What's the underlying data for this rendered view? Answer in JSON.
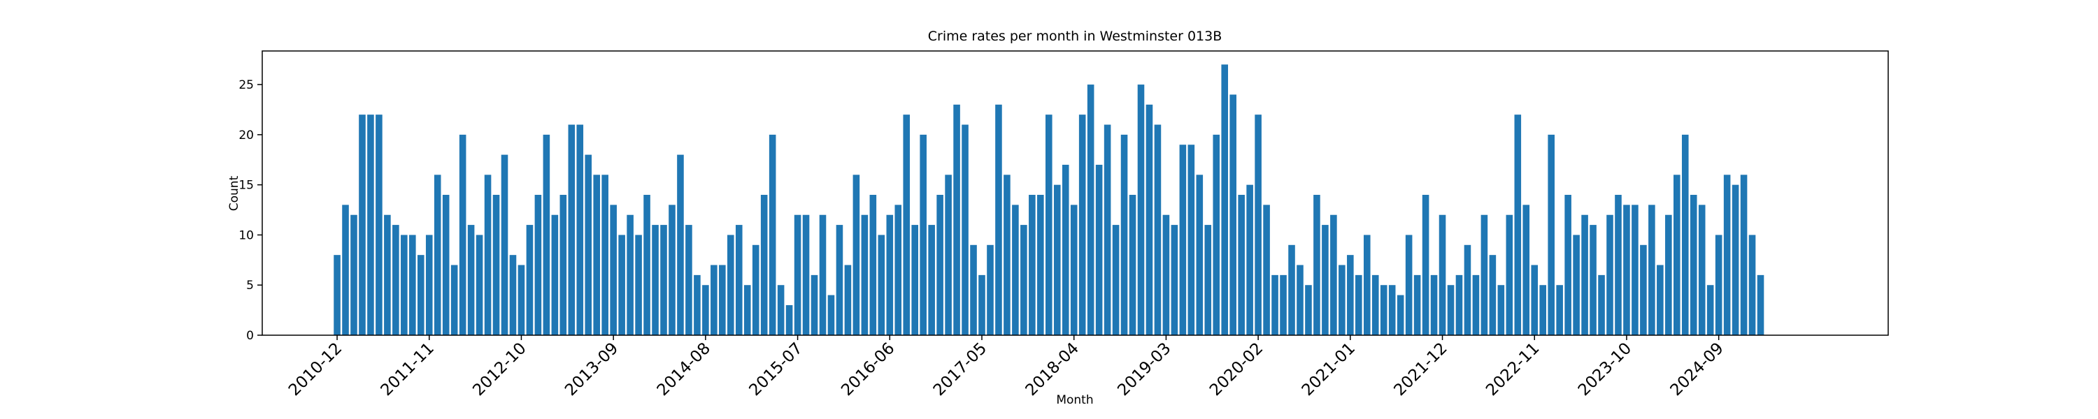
{
  "chart_data": {
    "type": "bar",
    "title": "Crime rates per month in Westminster 013B",
    "xlabel": "Month",
    "ylabel": "Count",
    "color": "#1f77b4",
    "categories": [
      "2010-12",
      null,
      null,
      null,
      null,
      null,
      null,
      null,
      null,
      null,
      null,
      "2011-11",
      null,
      null,
      null,
      null,
      null,
      null,
      null,
      null,
      null,
      null,
      "2012-10",
      null,
      null,
      null,
      null,
      null,
      null,
      null,
      null,
      null,
      null,
      "2013-09",
      null,
      null,
      null,
      null,
      null,
      null,
      null,
      null,
      null,
      null,
      "2014-08",
      null,
      null,
      null,
      null,
      null,
      null,
      null,
      null,
      null,
      null,
      "2015-07",
      null,
      null,
      null,
      null,
      null,
      null,
      null,
      null,
      null,
      null,
      "2016-06",
      null,
      null,
      null,
      null,
      null,
      null,
      null,
      null,
      null,
      null,
      "2017-05",
      null,
      null,
      null,
      null,
      null,
      null,
      null,
      null,
      null,
      null,
      "2018-04",
      null,
      null,
      null,
      null,
      null,
      null,
      null,
      null,
      null,
      null,
      "2019-03",
      null,
      null,
      null,
      null,
      null,
      null,
      null,
      null,
      null,
      null,
      "2020-02",
      null,
      null,
      null,
      null,
      null,
      null,
      null,
      null,
      null,
      null,
      "2021-01",
      null,
      null,
      null,
      null,
      null,
      null,
      null,
      null,
      null,
      null,
      "2021-12",
      null,
      null,
      null,
      null,
      null,
      null,
      null,
      null,
      null,
      null,
      "2022-11",
      null,
      null,
      null,
      null,
      null,
      null,
      null,
      null,
      null,
      null,
      "2023-10",
      null,
      null,
      null,
      null,
      null,
      null,
      null,
      null,
      null,
      null,
      "2024-09",
      null,
      null,
      null,
      null,
      null
    ],
    "values": [
      8,
      13,
      12,
      22,
      22,
      22,
      12,
      11,
      10,
      10,
      8,
      10,
      16,
      14,
      7,
      20,
      11,
      10,
      16,
      14,
      18,
      8,
      7,
      11,
      14,
      20,
      12,
      14,
      21,
      21,
      18,
      16,
      16,
      13,
      10,
      12,
      10,
      14,
      11,
      11,
      13,
      18,
      11,
      6,
      5,
      7,
      7,
      10,
      11,
      5,
      9,
      14,
      20,
      5,
      3,
      12,
      12,
      6,
      12,
      4,
      11,
      7,
      16,
      12,
      14,
      10,
      12,
      13,
      22,
      11,
      20,
      11,
      14,
      16,
      23,
      21,
      9,
      6,
      9,
      23,
      16,
      13,
      11,
      14,
      14,
      22,
      15,
      17,
      13,
      22,
      25,
      17,
      21,
      11,
      20,
      14,
      25,
      23,
      21,
      12,
      11,
      19,
      19,
      16,
      11,
      20,
      27,
      24,
      14,
      15,
      22,
      13,
      6,
      6,
      9,
      7,
      5,
      14,
      11,
      12,
      7,
      8,
      6,
      10,
      6,
      5,
      5,
      4,
      10,
      6,
      14,
      6,
      12,
      5,
      6,
      9,
      6,
      12,
      8,
      5,
      12,
      22,
      13,
      7,
      5,
      20,
      5,
      14,
      10,
      12,
      11,
      6,
      12,
      14,
      13,
      13,
      9,
      13,
      7,
      12,
      16,
      20,
      14,
      13,
      5,
      10,
      16,
      15,
      16,
      10,
      6
    ],
    "ylim": [
      0,
      28.35
    ],
    "yticks": [
      0,
      5,
      10,
      15,
      20,
      25
    ]
  }
}
